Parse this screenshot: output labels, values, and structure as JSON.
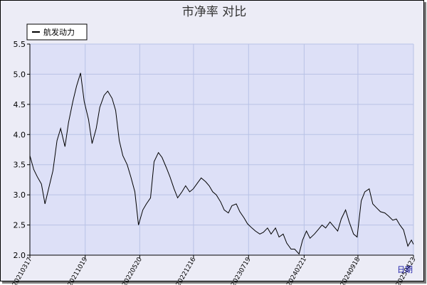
{
  "chart_data": {
    "type": "line",
    "title": "市净率  对比",
    "xlabel": "日期",
    "ylabel": "",
    "ylim": [
      2.0,
      5.5
    ],
    "yticks": [
      "2.0",
      "2.5",
      "3.0",
      "3.5",
      "4.0",
      "4.5",
      "5.0",
      "5.5"
    ],
    "xticks": [
      "20210317",
      "20211019",
      "20220520",
      "20221216",
      "20230719",
      "20240221",
      "20240918",
      "20250423"
    ],
    "grid": true,
    "legend_position": "top-left",
    "series": [
      {
        "name": "航发动力",
        "color": "#000000",
        "points": [
          [
            "20210317",
            3.65
          ],
          [
            "20210401",
            3.42
          ],
          [
            "20210415",
            3.3
          ],
          [
            "20210501",
            3.18
          ],
          [
            "20210515",
            2.85
          ],
          [
            "20210601",
            3.15
          ],
          [
            "20210615",
            3.4
          ],
          [
            "20210701",
            3.9
          ],
          [
            "20210715",
            4.1
          ],
          [
            "20210801",
            3.8
          ],
          [
            "20210815",
            4.2
          ],
          [
            "20210901",
            4.55
          ],
          [
            "20210915",
            4.8
          ],
          [
            "20211001",
            5.02
          ],
          [
            "20211015",
            4.55
          ],
          [
            "20211101",
            4.25
          ],
          [
            "20211115",
            3.85
          ],
          [
            "20211201",
            4.1
          ],
          [
            "20211215",
            4.45
          ],
          [
            "20220101",
            4.65
          ],
          [
            "20220115",
            4.72
          ],
          [
            "20220201",
            4.6
          ],
          [
            "20220215",
            4.4
          ],
          [
            "20220301",
            3.9
          ],
          [
            "20220315",
            3.65
          ],
          [
            "20220401",
            3.5
          ],
          [
            "20220415",
            3.3
          ],
          [
            "20220501",
            3.05
          ],
          [
            "20220515",
            2.5
          ],
          [
            "20220601",
            2.75
          ],
          [
            "20220615",
            2.85
          ],
          [
            "20220701",
            2.95
          ],
          [
            "20220715",
            3.55
          ],
          [
            "20220801",
            3.7
          ],
          [
            "20220815",
            3.62
          ],
          [
            "20220901",
            3.45
          ],
          [
            "20220915",
            3.3
          ],
          [
            "20221001",
            3.1
          ],
          [
            "20221015",
            2.95
          ],
          [
            "20221101",
            3.05
          ],
          [
            "20221115",
            3.15
          ],
          [
            "20221201",
            3.05
          ],
          [
            "20221215",
            3.1
          ],
          [
            "20230101",
            3.2
          ],
          [
            "20230115",
            3.28
          ],
          [
            "20230201",
            3.22
          ],
          [
            "20230215",
            3.15
          ],
          [
            "20230301",
            3.05
          ],
          [
            "20230315",
            3.0
          ],
          [
            "20230401",
            2.88
          ],
          [
            "20230415",
            2.75
          ],
          [
            "20230501",
            2.7
          ],
          [
            "20230515",
            2.82
          ],
          [
            "20230601",
            2.85
          ],
          [
            "20230615",
            2.72
          ],
          [
            "20230701",
            2.62
          ],
          [
            "20230715",
            2.52
          ],
          [
            "20230801",
            2.45
          ],
          [
            "20230815",
            2.4
          ],
          [
            "20230901",
            2.35
          ],
          [
            "20230915",
            2.38
          ],
          [
            "20231001",
            2.45
          ],
          [
            "20231015",
            2.35
          ],
          [
            "20231101",
            2.45
          ],
          [
            "20231115",
            2.3
          ],
          [
            "20231201",
            2.35
          ],
          [
            "20231215",
            2.2
          ],
          [
            "20240101",
            2.1
          ],
          [
            "20240115",
            2.1
          ],
          [
            "20240201",
            2.02
          ],
          [
            "20240215",
            2.25
          ],
          [
            "20240301",
            2.4
          ],
          [
            "20240315",
            2.28
          ],
          [
            "20240401",
            2.35
          ],
          [
            "20240415",
            2.42
          ],
          [
            "20240501",
            2.5
          ],
          [
            "20240515",
            2.45
          ],
          [
            "20240601",
            2.55
          ],
          [
            "20240615",
            2.48
          ],
          [
            "20240701",
            2.4
          ],
          [
            "20240715",
            2.6
          ],
          [
            "20240801",
            2.75
          ],
          [
            "20240815",
            2.55
          ],
          [
            "20240901",
            2.35
          ],
          [
            "20240915",
            2.3
          ],
          [
            "20241001",
            2.9
          ],
          [
            "20241015",
            3.05
          ],
          [
            "20241101",
            3.1
          ],
          [
            "20241115",
            2.85
          ],
          [
            "20241201",
            2.78
          ],
          [
            "20241215",
            2.72
          ],
          [
            "20250101",
            2.7
          ],
          [
            "20250115",
            2.65
          ],
          [
            "20250201",
            2.58
          ],
          [
            "20250215",
            2.6
          ],
          [
            "20250301",
            2.5
          ],
          [
            "20250315",
            2.42
          ],
          [
            "20250401",
            2.15
          ],
          [
            "20250415",
            2.25
          ],
          [
            "20250423",
            2.18
          ]
        ]
      }
    ]
  }
}
